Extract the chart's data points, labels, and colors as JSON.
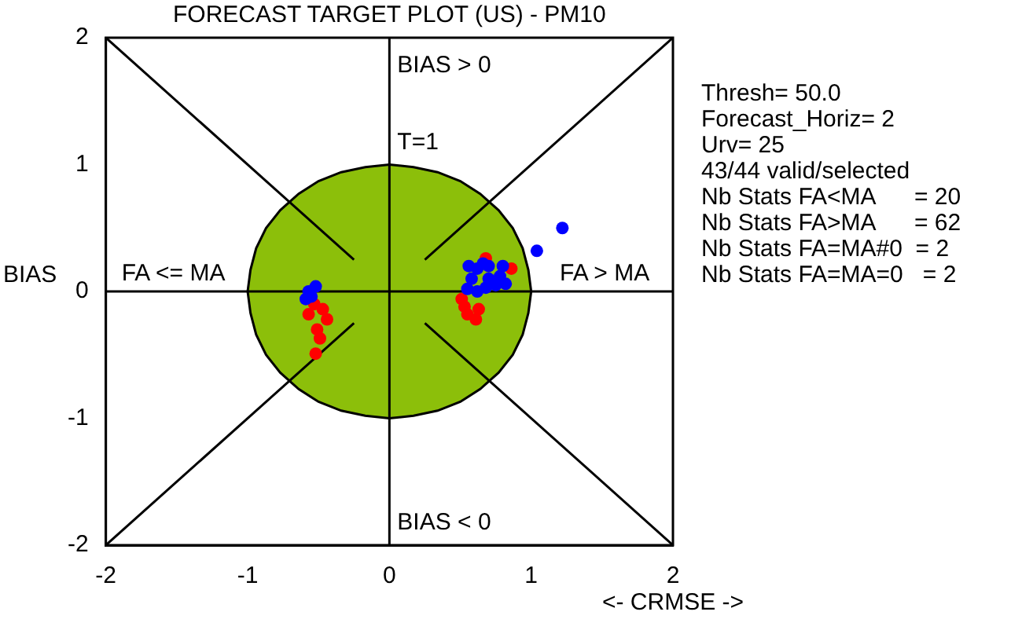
{
  "chart_data": {
    "type": "scatter",
    "title": "FORECAST TARGET PLOT (US) - PM10",
    "xlabel": "<- CRMSE ->",
    "ylabel": "BIAS",
    "xlim": [
      -2,
      2
    ],
    "ylim": [
      -2,
      2
    ],
    "xticks": [
      -2,
      -1,
      0,
      1,
      2
    ],
    "yticks": [
      -2,
      -1,
      0,
      1,
      2
    ],
    "grid": false,
    "legend": false,
    "annotations": [
      "BIAS > 0",
      "BIAS < 0",
      "FA <= MA",
      "FA > MA",
      {
        "text": "T=1",
        "x": 0,
        "y": 1
      },
      "Thresh= 50.0",
      "Forecast_Horiz= 2",
      "Urv= 25",
      "43/44 valid/selected",
      "Nb Stats FA<MA      = 20",
      "Nb Stats FA>MA      = 62",
      "Nb Stats FA=MA#0  = 2",
      "Nb Stats FA=MA=0   = 2"
    ],
    "series": [
      {
        "type": "area",
        "color": "#8cbf0a",
        "marker": "none",
        "x": [
          1,
          0.98,
          0.94,
          0.87,
          0.77,
          0.64,
          0.5,
          0.34,
          0.17,
          0,
          -0.17,
          -0.34,
          -0.5,
          -0.64,
          -0.77,
          -0.87,
          -0.94,
          -0.98,
          -1,
          -0.98,
          -0.94,
          -0.87,
          -0.77,
          -0.64,
          -0.5,
          -0.34,
          -0.17,
          0,
          0.17,
          0.34,
          0.5,
          0.64,
          0.77,
          0.87,
          0.94,
          0.98,
          1
        ],
        "values": [
          0,
          0.17,
          0.34,
          0.5,
          0.64,
          0.77,
          0.87,
          0.94,
          0.98,
          1,
          0.98,
          0.94,
          0.87,
          0.77,
          0.64,
          0.5,
          0.34,
          0.17,
          0,
          -0.17,
          -0.34,
          -0.5,
          -0.64,
          -0.77,
          -0.87,
          -0.94,
          -0.98,
          -1,
          -0.98,
          -0.94,
          -0.87,
          -0.77,
          -0.64,
          -0.5,
          -0.34,
          -0.17,
          0
        ]
      },
      {
        "type": "line",
        "color": "#000000",
        "marker": "none",
        "x": [
          0,
          0
        ],
        "values": [
          -2,
          2
        ]
      },
      {
        "type": "line",
        "color": "#000000",
        "marker": "none",
        "x": [
          -2,
          2
        ],
        "values": [
          0,
          0
        ]
      },
      {
        "type": "line",
        "color": "#000000",
        "marker": "none",
        "x": [
          -2,
          -0.25
        ],
        "values": [
          2,
          0.25
        ]
      },
      {
        "type": "line",
        "color": "#000000",
        "marker": "none",
        "x": [
          0.25,
          2
        ],
        "values": [
          0.25,
          2
        ]
      },
      {
        "type": "line",
        "color": "#000000",
        "marker": "none",
        "x": [
          -2,
          -0.25
        ],
        "values": [
          -2,
          -0.25
        ]
      },
      {
        "type": "line",
        "color": "#000000",
        "marker": "none",
        "x": [
          0.25,
          2
        ],
        "values": [
          -0.25,
          -2
        ]
      },
      {
        "type": "scatter",
        "color": "#ff0000",
        "marker": "circle",
        "x": [
          -0.47,
          -0.51,
          -0.49,
          -0.52,
          -0.57,
          -0.53,
          -0.44,
          0.51,
          0.55,
          0.63,
          0.53,
          0.86,
          0.68,
          0.61
        ],
        "values": [
          -0.14,
          -0.3,
          -0.37,
          -0.49,
          -0.18,
          -0.1,
          -0.22,
          -0.06,
          -0.18,
          -0.14,
          -0.12,
          0.18,
          0.26,
          -0.22
        ]
      },
      {
        "type": "scatter",
        "color": "#0000ff",
        "marker": "circle",
        "x": [
          0.55,
          0.58,
          0.62,
          0.66,
          0.7,
          0.78,
          0.82,
          0.7,
          0.75,
          0.56,
          0.62,
          0.8,
          0.68,
          1.04,
          1.22,
          -0.52,
          -0.59,
          -0.55,
          -0.57
        ],
        "values": [
          0.02,
          0.1,
          0.18,
          0.22,
          0.2,
          0.12,
          0.06,
          0.1,
          0.05,
          0.2,
          0.0,
          0.2,
          0.03,
          0.32,
          0.5,
          0.04,
          -0.06,
          -0.04,
          0.0
        ]
      }
    ]
  }
}
